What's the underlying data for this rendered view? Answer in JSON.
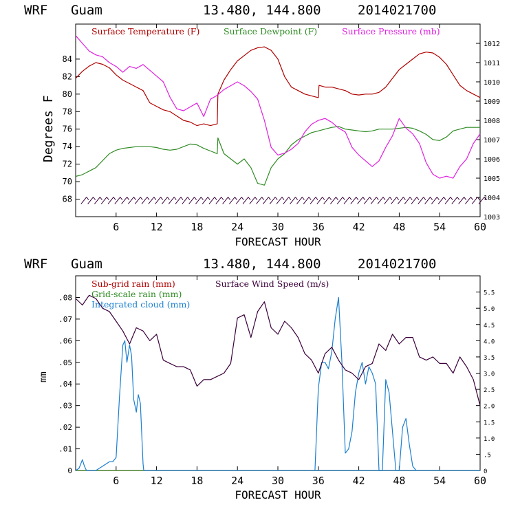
{
  "chart_data": [
    {
      "type": "line",
      "model": "WRF",
      "location": "Guam",
      "coords": "13.480, 144.800",
      "init": "2014021700",
      "xlabel": "FORECAST HOUR",
      "ylabel_left": "Degrees F",
      "xlim": [
        0,
        60
      ],
      "x_ticks": [
        "6",
        "12",
        "18",
        "24",
        "30",
        "36",
        "42",
        "48",
        "54",
        "60"
      ],
      "ylim_left": [
        66,
        88
      ],
      "y_ticks_left": [
        "68",
        "70",
        "72",
        "74",
        "76",
        "78",
        "80",
        "82",
        "84"
      ],
      "ylim_right": [
        1003,
        1013
      ],
      "y_ticks_right": [
        "1003",
        "1004",
        "1005",
        "1006",
        "1007",
        "1008",
        "1009",
        "1010",
        "1011",
        "1012"
      ],
      "legend": [
        "Surface Temperature (F)",
        "Surface Dewpoint (F)",
        "Surface Pressure (mb)"
      ],
      "series": [
        {
          "name": "Surface Temperature (F)",
          "color": "#b00000",
          "axis": "left",
          "x": [
            0,
            1,
            2,
            3,
            4,
            5,
            6,
            7,
            8,
            9,
            10,
            11,
            12,
            13,
            14,
            15,
            16,
            17,
            18,
            19,
            20,
            21,
            21.1,
            22,
            23,
            24,
            25,
            26,
            27,
            28,
            29,
            30,
            31,
            32,
            33,
            34,
            35,
            36,
            36.1,
            37,
            38,
            39,
            40,
            41,
            42,
            43,
            44,
            45,
            46,
            47,
            48,
            49,
            50,
            51,
            52,
            53,
            54,
            55,
            56,
            57,
            58,
            59,
            60
          ],
          "values": [
            81.8,
            82.6,
            83.2,
            83.6,
            83.4,
            83.0,
            82.2,
            81.6,
            81.2,
            80.8,
            80.4,
            79.0,
            78.6,
            78.2,
            78.0,
            77.5,
            77.0,
            76.8,
            76.4,
            76.6,
            76.4,
            76.6,
            80.0,
            81.6,
            82.8,
            83.8,
            84.4,
            85.0,
            85.3,
            85.4,
            85.0,
            84.0,
            82.0,
            80.8,
            80.4,
            80.0,
            79.8,
            79.6,
            81.0,
            80.8,
            80.8,
            80.6,
            80.4,
            80.0,
            79.9,
            80.0,
            80.0,
            80.2,
            80.8,
            81.8,
            82.8,
            83.4,
            84.0,
            84.6,
            84.8,
            84.7,
            84.2,
            83.4,
            82.2,
            81.0,
            80.4,
            80.0,
            79.6
          ]
        },
        {
          "name": "Surface Dewpoint (F)",
          "color": "#2e8b22",
          "axis": "left",
          "x": [
            0,
            1,
            2,
            3,
            4,
            5,
            6,
            7,
            8,
            9,
            10,
            11,
            12,
            13,
            14,
            15,
            16,
            17,
            18,
            19,
            20,
            21,
            21.1,
            22,
            23,
            24,
            25,
            26,
            27,
            28,
            29,
            30,
            31,
            32,
            33,
            34,
            35,
            36,
            37,
            38,
            39,
            40,
            41,
            42,
            43,
            44,
            45,
            46,
            47,
            48,
            49,
            50,
            51,
            52,
            53,
            54,
            55,
            56,
            57,
            58,
            59,
            60
          ],
          "values": [
            70.6,
            70.8,
            71.2,
            71.6,
            72.4,
            73.2,
            73.6,
            73.8,
            73.9,
            74.0,
            74.0,
            74.0,
            73.9,
            73.7,
            73.6,
            73.7,
            74.0,
            74.3,
            74.2,
            73.8,
            73.5,
            73.2,
            75.0,
            73.2,
            72.6,
            72.0,
            72.6,
            71.6,
            69.8,
            69.6,
            71.6,
            72.6,
            73.2,
            74.2,
            74.8,
            75.2,
            75.6,
            75.8,
            76.0,
            76.2,
            76.3,
            76.0,
            75.9,
            75.8,
            75.7,
            75.8,
            76.0,
            76.0,
            76.0,
            76.1,
            76.2,
            76.1,
            75.8,
            75.4,
            74.8,
            74.7,
            75.1,
            75.8,
            76.0,
            76.2,
            76.2,
            76.2
          ]
        },
        {
          "name": "Surface Pressure (mb)",
          "color": "#e020e0",
          "axis": "right",
          "x": [
            0,
            1,
            2,
            3,
            4,
            5,
            6,
            7,
            8,
            9,
            10,
            11,
            12,
            13,
            14,
            15,
            16,
            17,
            18,
            19,
            20,
            21,
            22,
            23,
            24,
            25,
            26,
            27,
            28,
            29,
            30,
            31,
            32,
            33,
            34,
            35,
            36,
            37,
            38,
            39,
            40,
            41,
            42,
            43,
            44,
            45,
            46,
            47,
            48,
            49,
            50,
            51,
            52,
            53,
            54,
            55,
            56,
            57,
            58,
            59,
            60
          ],
          "values": [
            1012.4,
            1012.0,
            1011.6,
            1011.4,
            1011.3,
            1011.0,
            1010.8,
            1010.5,
            1010.8,
            1010.7,
            1010.9,
            1010.6,
            1010.3,
            1010.0,
            1009.2,
            1008.6,
            1008.5,
            1008.7,
            1008.9,
            1008.2,
            1009.1,
            1009.3,
            1009.6,
            1009.8,
            1010.0,
            1009.8,
            1009.5,
            1009.1,
            1008.0,
            1006.6,
            1006.2,
            1006.3,
            1006.5,
            1006.8,
            1007.4,
            1007.8,
            1008.0,
            1008.1,
            1007.9,
            1007.6,
            1007.4,
            1006.6,
            1006.2,
            1005.9,
            1005.6,
            1005.9,
            1006.6,
            1007.2,
            1008.1,
            1007.6,
            1007.3,
            1006.8,
            1005.8,
            1005.2,
            1005.0,
            1005.1,
            1005.0,
            1005.6,
            1006.0,
            1006.8,
            1007.3
          ]
        }
      ],
      "wind_barbs": {
        "label": "wind barbs",
        "y": 68,
        "x_start": 1,
        "x_end": 60,
        "step": 1
      }
    },
    {
      "type": "line",
      "model": "WRF",
      "location": "Guam",
      "coords": "13.480, 144.800",
      "init": "2014021700",
      "xlabel": "FORECAST HOUR",
      "ylabel_left": "mm",
      "xlim": [
        0,
        60
      ],
      "x_ticks": [
        "6",
        "12",
        "18",
        "24",
        "30",
        "36",
        "42",
        "48",
        "54",
        "60"
      ],
      "ylim_left": [
        0,
        0.09
      ],
      "y_ticks_left": [
        "0",
        ".01",
        ".02",
        ".03",
        ".04",
        ".05",
        ".06",
        ".07",
        ".08"
      ],
      "ylim_right": [
        0,
        6.0
      ],
      "y_ticks_right": [
        "0",
        ".5",
        "1.0",
        "1.5",
        "2.0",
        "2.5",
        "3.0",
        "3.5",
        "4.0",
        "4.5",
        "5.0",
        "5.5"
      ],
      "legend": [
        "Sub-grid rain (mm)",
        "Grid-scale rain (mm)",
        "Integrated cloud (mm)",
        "Surface Wind Speed (m/s)"
      ],
      "series": [
        {
          "name": "Sub-grid rain (mm)",
          "color": "#b00000",
          "axis": "left",
          "x": [
            0,
            60
          ],
          "values": [
            0,
            0
          ]
        },
        {
          "name": "Grid-scale rain (mm)",
          "color": "#2e8b22",
          "axis": "left",
          "x": [
            0,
            60
          ],
          "values": [
            0,
            0
          ]
        },
        {
          "name": "Integrated cloud (mm)",
          "color": "#1a7fd0",
          "axis": "left",
          "x": [
            0,
            0.5,
            1,
            1.3,
            1.6,
            2,
            3,
            4,
            5,
            5.5,
            6,
            6.5,
            7,
            7.3,
            7.6,
            8,
            8.3,
            8.6,
            9,
            9.3,
            9.6,
            10,
            10.1,
            60
          ],
          "values": [
            0,
            0.001,
            0.005,
            0.002,
            0,
            0,
            0,
            0.002,
            0.004,
            0.004,
            0.006,
            0.034,
            0.058,
            0.06,
            0.05,
            0.058,
            0.053,
            0.033,
            0.027,
            0.035,
            0.031,
            0.003,
            0,
            0
          ]
        },
        {
          "name": "Integrated cloud (mm) cont.",
          "color": "#1a7fd0",
          "axis": "left",
          "x": [
            35.5,
            36,
            36.5,
            37,
            37.5,
            38,
            38.5,
            39,
            39.5,
            40,
            40.5,
            41,
            41.5,
            42,
            42.5,
            43,
            43.5,
            44,
            44.5,
            45,
            45.5,
            46,
            46.5,
            47,
            47.5,
            48,
            48.5,
            49,
            49.5,
            50,
            50.5
          ],
          "values": [
            0,
            0.038,
            0.05,
            0.05,
            0.047,
            0.055,
            0.07,
            0.08,
            0.05,
            0.008,
            0.01,
            0.018,
            0.036,
            0.045,
            0.05,
            0.04,
            0.048,
            0.045,
            0.04,
            0,
            0,
            0.042,
            0.036,
            0.018,
            0,
            0,
            0.02,
            0.024,
            0.012,
            0.002,
            0
          ]
        },
        {
          "name": "Surface Wind Speed (m/s)",
          "color": "#3a003a",
          "axis": "right",
          "x": [
            0,
            1,
            2,
            3,
            4,
            5,
            6,
            7,
            8,
            9,
            10,
            11,
            12,
            13,
            14,
            15,
            16,
            17,
            18,
            19,
            20,
            21,
            22,
            23,
            24,
            25,
            26,
            27,
            28,
            29,
            30,
            31,
            32,
            33,
            34,
            35,
            36,
            37,
            38,
            39,
            40,
            41,
            42,
            43,
            44,
            45,
            46,
            47,
            48,
            49,
            50,
            51,
            52,
            53,
            54,
            55,
            56,
            57,
            58,
            59,
            60
          ],
          "values": [
            5.3,
            5.1,
            5.4,
            5.3,
            5.0,
            4.9,
            4.6,
            4.3,
            3.9,
            4.4,
            4.3,
            4.0,
            4.2,
            3.4,
            3.3,
            3.2,
            3.2,
            3.1,
            2.6,
            2.8,
            2.8,
            2.9,
            3.0,
            3.3,
            4.7,
            4.8,
            4.1,
            4.9,
            5.2,
            4.4,
            4.2,
            4.6,
            4.4,
            4.1,
            3.6,
            3.4,
            3.0,
            3.6,
            3.8,
            3.4,
            3.1,
            3.0,
            2.8,
            3.2,
            3.3,
            3.9,
            3.7,
            4.2,
            3.9,
            4.1,
            4.1,
            3.5,
            3.4,
            3.5,
            3.3,
            3.3,
            3.0,
            3.5,
            3.2,
            2.8,
            2.0
          ]
        }
      ]
    }
  ]
}
